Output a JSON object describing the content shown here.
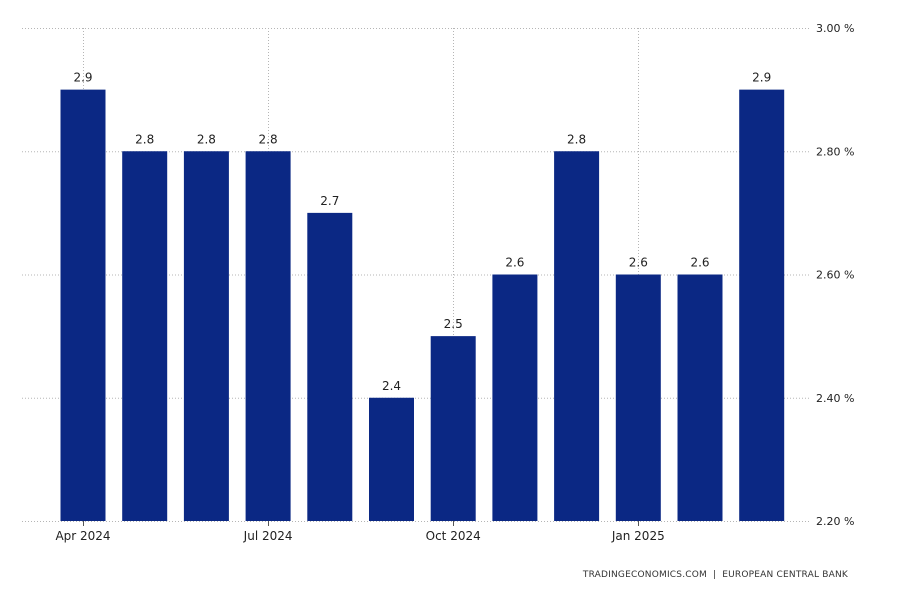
{
  "chart_data": {
    "type": "bar",
    "categories": [
      "Apr 2024",
      "May 2024",
      "Jun 2024",
      "Jul 2024",
      "Aug 2024",
      "Sep 2024",
      "Oct 2024",
      "Nov 2024",
      "Dec 2024",
      "Jan 2025",
      "Feb 2025",
      "Mar 2025"
    ],
    "values": [
      2.9,
      2.8,
      2.8,
      2.8,
      2.7,
      2.4,
      2.5,
      2.6,
      2.8,
      2.6,
      2.6,
      2.9
    ],
    "data_labels": [
      "2.9",
      "2.8",
      "2.8",
      "2.8",
      "2.7",
      "2.4",
      "2.5",
      "2.6",
      "2.8",
      "2.6",
      "2.6",
      "2.9"
    ],
    "x_tick_labels": [
      {
        "index": 0,
        "label": "Apr 2024"
      },
      {
        "index": 3,
        "label": "Jul 2024"
      },
      {
        "index": 6,
        "label": "Oct 2024"
      },
      {
        "index": 9,
        "label": "Jan 2025"
      }
    ],
    "y_ticks": [
      2.2,
      2.4,
      2.6,
      2.8,
      3.0
    ],
    "y_tick_labels": [
      "2.20 %",
      "2.40 %",
      "2.60 %",
      "2.80 %",
      "3.00 %"
    ],
    "ylim": [
      2.2,
      3.0
    ],
    "y_axis_side": "right",
    "grid": true,
    "bar_color": "#0b2884",
    "title": "",
    "xlabel": "",
    "ylabel": ""
  },
  "footer": {
    "source_left": "TRADINGECONOMICS.COM",
    "separator": "|",
    "source_right": "EUROPEAN CENTRAL BANK"
  }
}
